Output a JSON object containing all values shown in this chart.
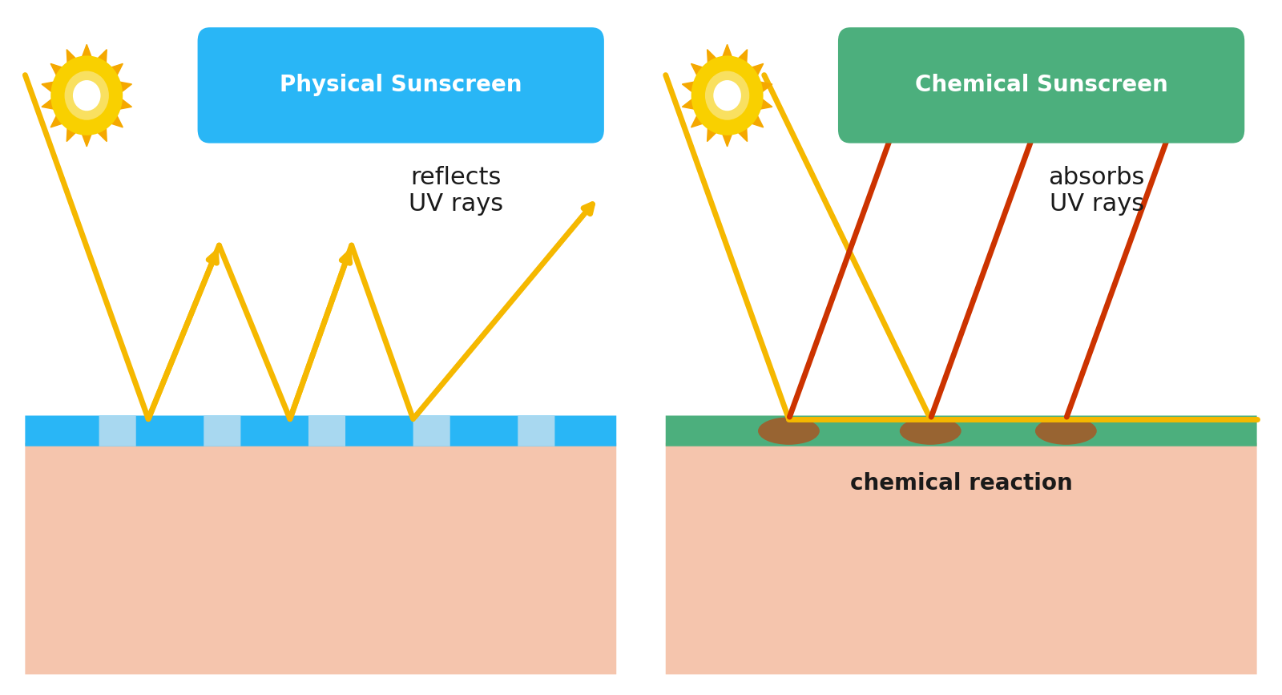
{
  "bg_color": "#ffffff",
  "skin_color": "#f5c5ad",
  "physical_label_bg": "#29b6f6",
  "physical_label_text": "Physical Sunscreen",
  "chemical_label_bg": "#4caf7d",
  "chemical_label_text": "Chemical Sunscreen",
  "physical_layer_color": "#29b6f6",
  "chemical_layer_color": "#4caf7d",
  "incoming_ray_color": "#f5b800",
  "reflected_ray_color": "#f5b800",
  "absorbed_ray_color": "#cc3300",
  "reflects_text": "reflects\nUV rays",
  "absorbs_text": "absorbs\nUV rays",
  "reaction_text": "chemical reaction",
  "text_color": "#1a1a1a",
  "label_text_color": "#ffffff",
  "sun_outer_color": "#f5a800",
  "sun_inner_color": "#ffffff",
  "sun_mid_color": "#f9d000"
}
